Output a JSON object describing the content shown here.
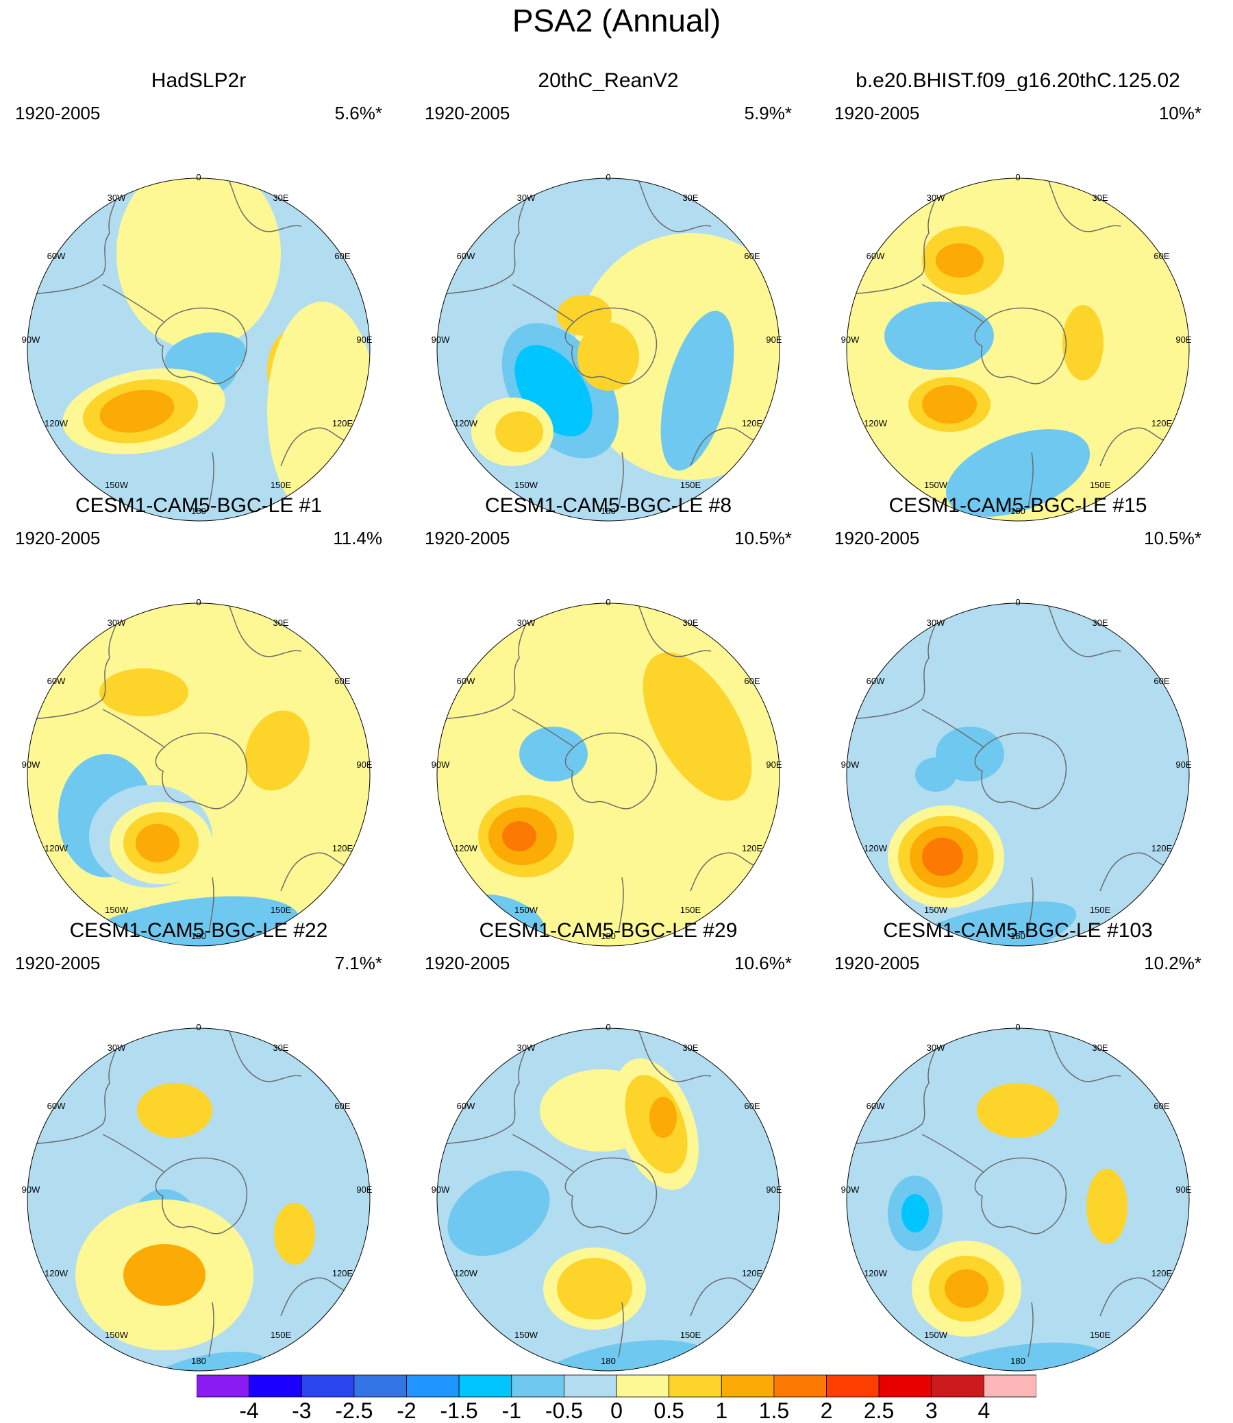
{
  "title": "PSA2 (Annual)",
  "longitude_labels": {
    "lon_0": "0",
    "lon_30e": "30E",
    "lon_60e": "60E",
    "lon_90e": "90E",
    "lon_120e": "120E",
    "lon_150e": "150E",
    "lon_180": "180",
    "lon_150w": "150W",
    "lon_120w": "120W",
    "lon_90w": "90W",
    "lon_60w": "60W",
    "lon_30w": "30W"
  },
  "panels": [
    {
      "title": "HadSLP2r",
      "period": "1920-2005",
      "variance": "5.6%*"
    },
    {
      "title": "20thC_ReanV2",
      "period": "1920-2005",
      "variance": "5.9%*"
    },
    {
      "title": "b.e20.BHIST.f09_g16.20thC.125.02",
      "period": "1920-2005",
      "variance": "10%*"
    },
    {
      "title": "CESM1-CAM5-BGC-LE #1",
      "period": "1920-2005",
      "variance": "11.4%"
    },
    {
      "title": "CESM1-CAM5-BGC-LE #8",
      "period": "1920-2005",
      "variance": "10.5%*"
    },
    {
      "title": "CESM1-CAM5-BGC-LE #15",
      "period": "1920-2005",
      "variance": "10.5%*"
    },
    {
      "title": "CESM1-CAM5-BGC-LE #22",
      "period": "1920-2005",
      "variance": "7.1%*"
    },
    {
      "title": "CESM1-CAM5-BGC-LE #29",
      "period": "1920-2005",
      "variance": "10.6%*"
    },
    {
      "title": "CESM1-CAM5-BGC-LE #103",
      "period": "1920-2005",
      "variance": "10.2%*"
    }
  ],
  "colorbar": {
    "colors": [
      "#8a1bf2",
      "#1c00ff",
      "#2b45ef",
      "#3375e6",
      "#1e95ff",
      "#00c5ff",
      "#6fc8f0",
      "#b2ddf1",
      "#fdf894",
      "#fcd42a",
      "#fcaa05",
      "#fc7a04",
      "#ff3e02",
      "#e80000",
      "#cc1b1f",
      "#fbb6b7"
    ],
    "labels": [
      "-4",
      "-3",
      "-2.5",
      "-2",
      "-1.5",
      "-1",
      "-0.5",
      "0",
      "0.5",
      "1",
      "1.5",
      "2",
      "2.5",
      "3",
      "4"
    ]
  },
  "chart_data": {
    "type": "contour-map",
    "projection": "south polar stereographic",
    "title": "PSA2 (Annual)",
    "period": "1920-2005",
    "contour_levels": [
      -4,
      -3,
      -2.5,
      -2,
      -1.5,
      -1,
      -0.5,
      0,
      0.5,
      1,
      1.5,
      2,
      2.5,
      3,
      4
    ],
    "panels": [
      {
        "name": "HadSLP2r",
        "variance_explained_pct": 5.6,
        "significant": true
      },
      {
        "name": "20thC_ReanV2",
        "variance_explained_pct": 5.9,
        "significant": true
      },
      {
        "name": "b.e20.BHIST.f09_g16.20thC.125.02",
        "variance_explained_pct": 10,
        "significant": true
      },
      {
        "name": "CESM1-CAM5-BGC-LE #1",
        "variance_explained_pct": 11.4,
        "significant": false
      },
      {
        "name": "CESM1-CAM5-BGC-LE #8",
        "variance_explained_pct": 10.5,
        "significant": true
      },
      {
        "name": "CESM1-CAM5-BGC-LE #15",
        "variance_explained_pct": 10.5,
        "significant": true
      },
      {
        "name": "CESM1-CAM5-BGC-LE #22",
        "variance_explained_pct": 7.1,
        "significant": true
      },
      {
        "name": "CESM1-CAM5-BGC-LE #29",
        "variance_explained_pct": 10.6,
        "significant": true
      },
      {
        "name": "CESM1-CAM5-BGC-LE #103",
        "variance_explained_pct": 10.2,
        "significant": true
      }
    ]
  }
}
